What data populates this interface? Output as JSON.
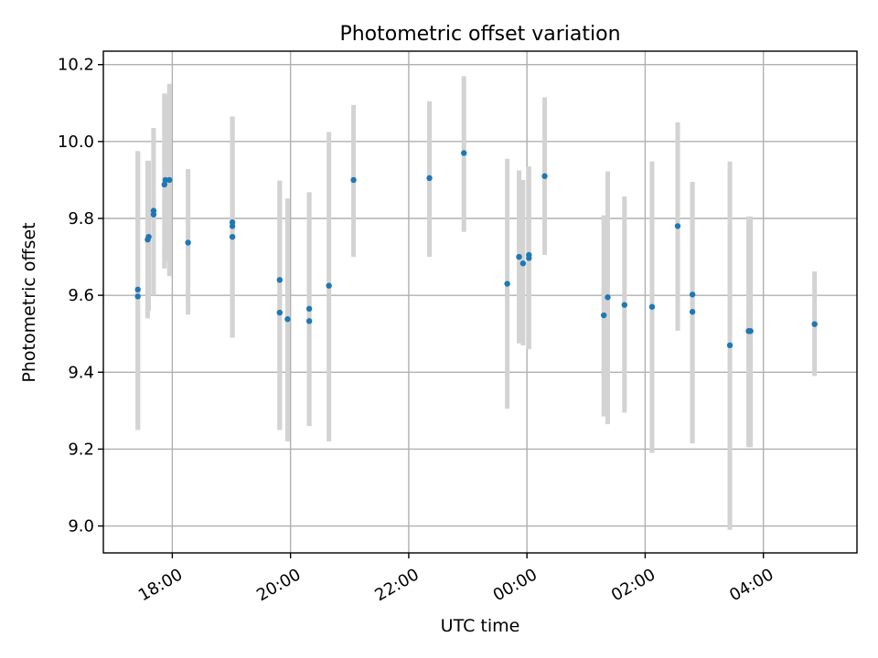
{
  "chart_data": {
    "type": "scatter",
    "title": "Photometric offset variation",
    "xlabel": "UTC time",
    "ylabel": "Photometric offset",
    "x_axis": "time (UTC), first date Day 0, after midnight Day 1",
    "xlim": [
      "0 16:50",
      "1 05:35"
    ],
    "ylim": [
      8.93,
      10.235
    ],
    "grid": true,
    "x_ticks": [
      {
        "t": "0 18:00",
        "label": "18:00"
      },
      {
        "t": "0 20:00",
        "label": "20:00"
      },
      {
        "t": "0 22:00",
        "label": "22:00"
      },
      {
        "t": "1 00:00",
        "label": "00:00"
      },
      {
        "t": "1 02:00",
        "label": "02:00"
      },
      {
        "t": "1 04:00",
        "label": "04:00"
      }
    ],
    "y_ticks": [
      {
        "v": 9.0,
        "label": "9.0"
      },
      {
        "v": 9.2,
        "label": "9.2"
      },
      {
        "v": 9.4,
        "label": "9.4"
      },
      {
        "v": 9.6,
        "label": "9.6"
      },
      {
        "v": 9.8,
        "label": "9.8"
      },
      {
        "v": 10.0,
        "label": "10.0"
      },
      {
        "v": 10.2,
        "label": "10.2"
      }
    ],
    "series": [
      {
        "marker_color": "#1f77b4",
        "error_color": "#d3d3d3",
        "points": [
          {
            "t": "0 17:25",
            "y": 9.615,
            "lo": 9.25,
            "hi": 9.975
          },
          {
            "t": "0 17:25",
            "y": 9.597,
            "lo": 9.25,
            "hi": 9.975
          },
          {
            "t": "0 17:35",
            "y": 9.745,
            "lo": 9.54,
            "hi": 9.95
          },
          {
            "t": "0 17:36",
            "y": 9.752,
            "lo": 9.56,
            "hi": 9.95
          },
          {
            "t": "0 17:41",
            "y": 9.81,
            "lo": 9.6,
            "hi": 10.035
          },
          {
            "t": "0 17:41",
            "y": 9.82,
            "lo": 9.6,
            "hi": 10.035
          },
          {
            "t": "0 17:52",
            "y": 9.888,
            "lo": 9.67,
            "hi": 10.125
          },
          {
            "t": "0 17:53",
            "y": 9.9,
            "lo": 9.69,
            "hi": 10.12
          },
          {
            "t": "0 17:57",
            "y": 9.9,
            "lo": 9.65,
            "hi": 10.15
          },
          {
            "t": "0 18:16",
            "y": 9.737,
            "lo": 9.55,
            "hi": 9.928
          },
          {
            "t": "0 19:01",
            "y": 9.79,
            "lo": 9.49,
            "hi": 10.065
          },
          {
            "t": "0 19:01",
            "y": 9.78,
            "lo": 9.49,
            "hi": 10.065
          },
          {
            "t": "0 19:01",
            "y": 9.752,
            "lo": 9.49,
            "hi": 10.065
          },
          {
            "t": "0 19:49",
            "y": 9.64,
            "lo": 9.25,
            "hi": 9.898
          },
          {
            "t": "0 19:49",
            "y": 9.555,
            "lo": 9.25,
            "hi": 9.898
          },
          {
            "t": "0 19:57",
            "y": 9.538,
            "lo": 9.22,
            "hi": 9.852
          },
          {
            "t": "0 20:19",
            "y": 9.565,
            "lo": 9.26,
            "hi": 9.868
          },
          {
            "t": "0 20:19",
            "y": 9.533,
            "lo": 9.26,
            "hi": 9.868
          },
          {
            "t": "0 20:39",
            "y": 9.625,
            "lo": 9.22,
            "hi": 10.025
          },
          {
            "t": "0 21:04",
            "y": 9.9,
            "lo": 9.7,
            "hi": 10.095
          },
          {
            "t": "0 22:21",
            "y": 9.905,
            "lo": 9.7,
            "hi": 10.105
          },
          {
            "t": "0 22:56",
            "y": 9.97,
            "lo": 9.765,
            "hi": 10.17
          },
          {
            "t": "0 23:40",
            "y": 9.63,
            "lo": 9.305,
            "hi": 9.955
          },
          {
            "t": "0 23:52",
            "y": 9.7,
            "lo": 9.475,
            "hi": 9.925
          },
          {
            "t": "0 23:56",
            "y": 9.683,
            "lo": 9.47,
            "hi": 9.9
          },
          {
            "t": "1 00:02",
            "y": 9.705,
            "lo": 9.46,
            "hi": 9.935
          },
          {
            "t": "1 00:02",
            "y": 9.697,
            "lo": 9.46,
            "hi": 9.935
          },
          {
            "t": "1 00:18",
            "y": 9.91,
            "lo": 9.705,
            "hi": 10.115
          },
          {
            "t": "1 01:18",
            "y": 9.548,
            "lo": 9.285,
            "hi": 9.808
          },
          {
            "t": "1 01:22",
            "y": 9.595,
            "lo": 9.265,
            "hi": 9.922
          },
          {
            "t": "1 01:39",
            "y": 9.575,
            "lo": 9.295,
            "hi": 9.857
          },
          {
            "t": "1 02:07",
            "y": 9.57,
            "lo": 9.19,
            "hi": 9.948
          },
          {
            "t": "1 02:33",
            "y": 9.78,
            "lo": 9.508,
            "hi": 10.05
          },
          {
            "t": "1 02:48",
            "y": 9.602,
            "lo": 9.215,
            "hi": 9.895
          },
          {
            "t": "1 02:48",
            "y": 9.557,
            "lo": 9.215,
            "hi": 9.895
          },
          {
            "t": "1 03:26",
            "y": 9.47,
            "lo": 8.99,
            "hi": 9.948
          },
          {
            "t": "1 03:45",
            "y": 9.507,
            "lo": 9.205,
            "hi": 9.805
          },
          {
            "t": "1 03:47",
            "y": 9.507,
            "lo": 9.205,
            "hi": 9.805
          },
          {
            "t": "1 04:52",
            "y": 9.525,
            "lo": 9.39,
            "hi": 9.662
          }
        ]
      }
    ]
  }
}
